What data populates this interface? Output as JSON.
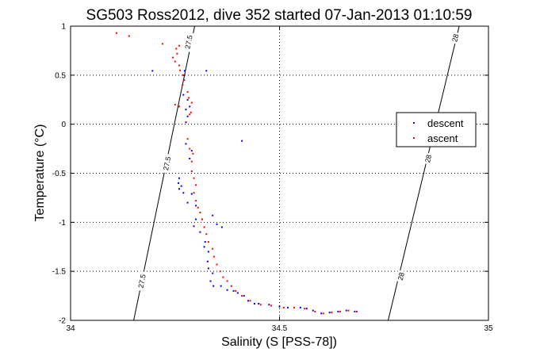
{
  "chart_data": {
    "type": "scatter",
    "title": "SG503 Ross2012, dive 352 started 07-Jan-2013 01:10:59",
    "xlabel": "Salinity (S [PSS-78])",
    "ylabel": "Temperature (°C)",
    "xlim": [
      34,
      35
    ],
    "ylim": [
      -2,
      1
    ],
    "x_ticks": [
      "34",
      "34.5",
      "35"
    ],
    "x_tick_values": [
      34,
      34.5,
      35
    ],
    "y_ticks": [
      "1",
      "0.5",
      "0",
      "-0.5",
      "-1",
      "-1.5",
      "-2"
    ],
    "y_tick_values": [
      1,
      0.5,
      0,
      -0.5,
      -1,
      -1.5,
      -2
    ],
    "grid": true,
    "legend_position": "right",
    "series": [
      {
        "name": "descent",
        "color": "#0000ff",
        "points": [
          [
            34.196,
            0.545
          ],
          [
            34.273,
            0.545
          ],
          [
            34.325,
            0.545
          ],
          [
            34.27,
            0.5
          ],
          [
            34.27,
            0.3
          ],
          [
            34.28,
            0.25
          ],
          [
            34.285,
            0.18
          ],
          [
            34.276,
            0.15
          ],
          [
            34.28,
            0.08
          ],
          [
            34.276,
            0.02
          ],
          [
            34.41,
            -0.17
          ],
          [
            34.276,
            -0.2
          ],
          [
            34.29,
            -0.27
          ],
          [
            34.285,
            -0.35
          ],
          [
            34.26,
            -0.55
          ],
          [
            34.258,
            -0.6
          ],
          [
            34.265,
            -0.63
          ],
          [
            34.26,
            -0.66
          ],
          [
            34.27,
            -0.7
          ],
          [
            34.29,
            -0.71
          ],
          [
            34.28,
            -0.8
          ],
          [
            34.3,
            -0.83
          ],
          [
            34.3,
            -0.97
          ],
          [
            34.34,
            -0.93
          ],
          [
            34.35,
            -1.02
          ],
          [
            34.362,
            -1.05
          ],
          [
            34.295,
            -1.04
          ],
          [
            34.31,
            -1.1
          ],
          [
            34.322,
            -1.2
          ],
          [
            34.32,
            -1.25
          ],
          [
            34.33,
            -1.3
          ],
          [
            34.328,
            -1.4
          ],
          [
            34.33,
            -1.47
          ],
          [
            34.34,
            -1.52
          ],
          [
            34.335,
            -1.6
          ],
          [
            34.342,
            -1.65
          ],
          [
            34.36,
            -1.65
          ],
          [
            34.375,
            -1.69
          ],
          [
            34.39,
            -1.7
          ],
          [
            34.4,
            -1.72
          ],
          [
            34.415,
            -1.75
          ],
          [
            34.425,
            -1.8
          ],
          [
            34.44,
            -1.83
          ],
          [
            34.45,
            -1.83
          ],
          [
            34.475,
            -1.84
          ],
          [
            34.5,
            -1.86
          ],
          [
            34.52,
            -1.87
          ],
          [
            34.55,
            -1.87
          ],
          [
            34.565,
            -1.88
          ],
          [
            34.58,
            -1.9
          ],
          [
            34.6,
            -1.93
          ],
          [
            34.62,
            -1.92
          ],
          [
            34.64,
            -1.91
          ],
          [
            34.66,
            -1.9
          ],
          [
            34.68,
            -1.91
          ]
        ]
      },
      {
        "name": "ascent",
        "color": "#ff0000",
        "points": [
          [
            34.11,
            0.93
          ],
          [
            34.14,
            0.9
          ],
          [
            34.22,
            0.82
          ],
          [
            34.253,
            0.77
          ],
          [
            34.26,
            0.8
          ],
          [
            34.255,
            0.72
          ],
          [
            34.245,
            0.68
          ],
          [
            34.25,
            0.64
          ],
          [
            34.26,
            0.6
          ],
          [
            34.262,
            0.55
          ],
          [
            34.27,
            0.5
          ],
          [
            34.272,
            0.45
          ],
          [
            34.268,
            0.4
          ],
          [
            34.28,
            0.33
          ],
          [
            34.283,
            0.27
          ],
          [
            34.29,
            0.22
          ],
          [
            34.26,
            0.18
          ],
          [
            34.25,
            0.2
          ],
          [
            34.288,
            0.12
          ],
          [
            34.285,
            0.1
          ],
          [
            34.28,
            -0.15
          ],
          [
            34.285,
            -0.25
          ],
          [
            34.293,
            -0.3
          ],
          [
            34.29,
            -0.38
          ],
          [
            34.29,
            -0.48
          ],
          [
            34.295,
            -0.55
          ],
          [
            34.3,
            -0.62
          ],
          [
            34.295,
            -0.7
          ],
          [
            34.3,
            -0.78
          ],
          [
            34.305,
            -0.85
          ],
          [
            34.31,
            -0.9
          ],
          [
            34.315,
            -0.97
          ],
          [
            34.32,
            -1.05
          ],
          [
            34.325,
            -1.12
          ],
          [
            34.33,
            -1.2
          ],
          [
            34.34,
            -1.27
          ],
          [
            34.343,
            -1.35
          ],
          [
            34.35,
            -1.43
          ],
          [
            34.358,
            -1.5
          ],
          [
            34.365,
            -1.56
          ],
          [
            34.375,
            -1.6
          ],
          [
            34.385,
            -1.65
          ],
          [
            34.395,
            -1.7
          ],
          [
            34.41,
            -1.75
          ],
          [
            34.43,
            -1.8
          ],
          [
            34.455,
            -1.84
          ],
          [
            34.48,
            -1.85
          ],
          [
            34.51,
            -1.87
          ],
          [
            34.535,
            -1.87
          ],
          [
            34.56,
            -1.88
          ],
          [
            34.585,
            -1.91
          ],
          [
            34.605,
            -1.93
          ],
          [
            34.625,
            -1.92
          ],
          [
            34.645,
            -1.91
          ],
          [
            34.665,
            -1.9
          ],
          [
            34.685,
            -1.91
          ]
        ]
      }
    ],
    "density_contours": [
      {
        "label": "27.5",
        "points": [
          [
            34.151,
            -2
          ],
          [
            34.297,
            1
          ]
        ]
      },
      {
        "label": "28",
        "points": [
          [
            34.76,
            -2
          ],
          [
            34.93,
            1
          ]
        ]
      }
    ],
    "contour_labels": [
      {
        "label": "27.5",
        "at": [
          34.282,
          0.84
        ]
      },
      {
        "label": "27.5",
        "at": [
          34.23,
          -0.4
        ]
      },
      {
        "label": "27.5",
        "at": [
          34.17,
          -1.6
        ]
      },
      {
        "label": "28",
        "at": [
          34.92,
          0.88
        ]
      },
      {
        "label": "28",
        "at": [
          34.855,
          -0.35
        ]
      },
      {
        "label": "28",
        "at": [
          34.79,
          -1.55
        ]
      }
    ],
    "legend": [
      {
        "label": "descent",
        "color": "#0000ff"
      },
      {
        "label": "ascent",
        "color": "#ff0000"
      }
    ]
  }
}
